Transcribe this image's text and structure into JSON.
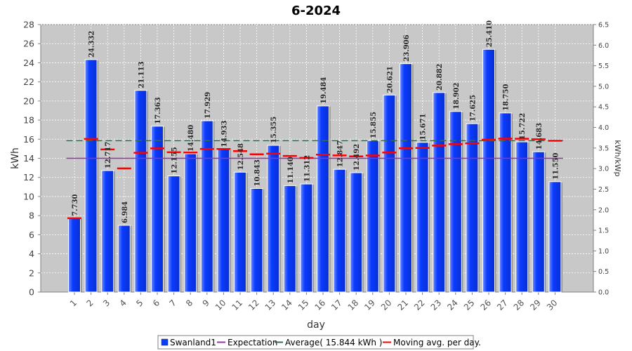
{
  "chart_data": {
    "type": "bar",
    "title": "6-2024",
    "xlabel": "day",
    "ylabel": "kWh",
    "ylabel_right": "kWh/kWp",
    "ylim": [
      0,
      28
    ],
    "ylim_right": [
      0,
      6.5
    ],
    "y_ticks": [
      0,
      2,
      4,
      6,
      8,
      10,
      12,
      14,
      16,
      18,
      20,
      22,
      24,
      26,
      28
    ],
    "y_ticks_right": [
      "0.0",
      "0.5",
      "1.0",
      "1.5",
      "2.0",
      "2.5",
      "3.0",
      "3.5",
      "4.0",
      "4.5",
      "5.0",
      "5.5",
      "6.0",
      "6.5"
    ],
    "grid": true,
    "legend_position": "bottom",
    "categories": [
      "1",
      "2",
      "3",
      "4",
      "5",
      "6",
      "7",
      "8",
      "9",
      "10",
      "11",
      "12",
      "13",
      "14",
      "15",
      "16",
      "17",
      "18",
      "19",
      "20",
      "21",
      "22",
      "23",
      "24",
      "25",
      "26",
      "27",
      "28",
      "29",
      "30"
    ],
    "series": [
      {
        "name": "Swanland1",
        "type": "bar",
        "color": "#0a3cff",
        "values": [
          7.73,
          24.332,
          12.717,
          6.984,
          21.113,
          17.363,
          12.155,
          14.48,
          17.929,
          14.933,
          12.548,
          10.843,
          15.355,
          11.14,
          11.312,
          19.484,
          12.847,
          12.492,
          15.855,
          20.621,
          23.906,
          15.671,
          20.882,
          18.902,
          17.625,
          25.41,
          18.75,
          15.722,
          14.683,
          11.55
        ],
        "labels": [
          "7.730",
          "24.332",
          "12.717",
          "6.984",
          "21.113",
          "17.363",
          "12.155",
          "14.480",
          "17.929",
          "14.933",
          "12.548",
          "10.843",
          "15.355",
          "11.140",
          "11.312",
          "19.484",
          "12.847",
          "12.492",
          "15.855",
          "20.621",
          "23.906",
          "15.671",
          "20.882",
          "18.902",
          "17.625",
          "25.410",
          "18.750",
          "15.722",
          "14.683",
          "11.550"
        ]
      },
      {
        "name": "Expectation",
        "type": "line",
        "color": "#9b30b0",
        "value": 14.0
      },
      {
        "name": "Average( 15.844 kWh )",
        "type": "line",
        "color": "#3a6a50",
        "value": 15.844
      },
      {
        "name": "Moving avg. per day.",
        "type": "marker",
        "color": "#ff0000",
        "values": [
          7.73,
          16.03,
          14.93,
          12.94,
          14.58,
          15.04,
          14.63,
          14.61,
          14.98,
          14.97,
          14.75,
          14.42,
          14.49,
          14.25,
          14.05,
          14.39,
          14.3,
          14.2,
          14.29,
          14.61,
          15.05,
          15.08,
          15.33,
          15.48,
          15.57,
          15.95,
          16.06,
          16.05,
          15.99,
          15.84
        ]
      }
    ]
  }
}
